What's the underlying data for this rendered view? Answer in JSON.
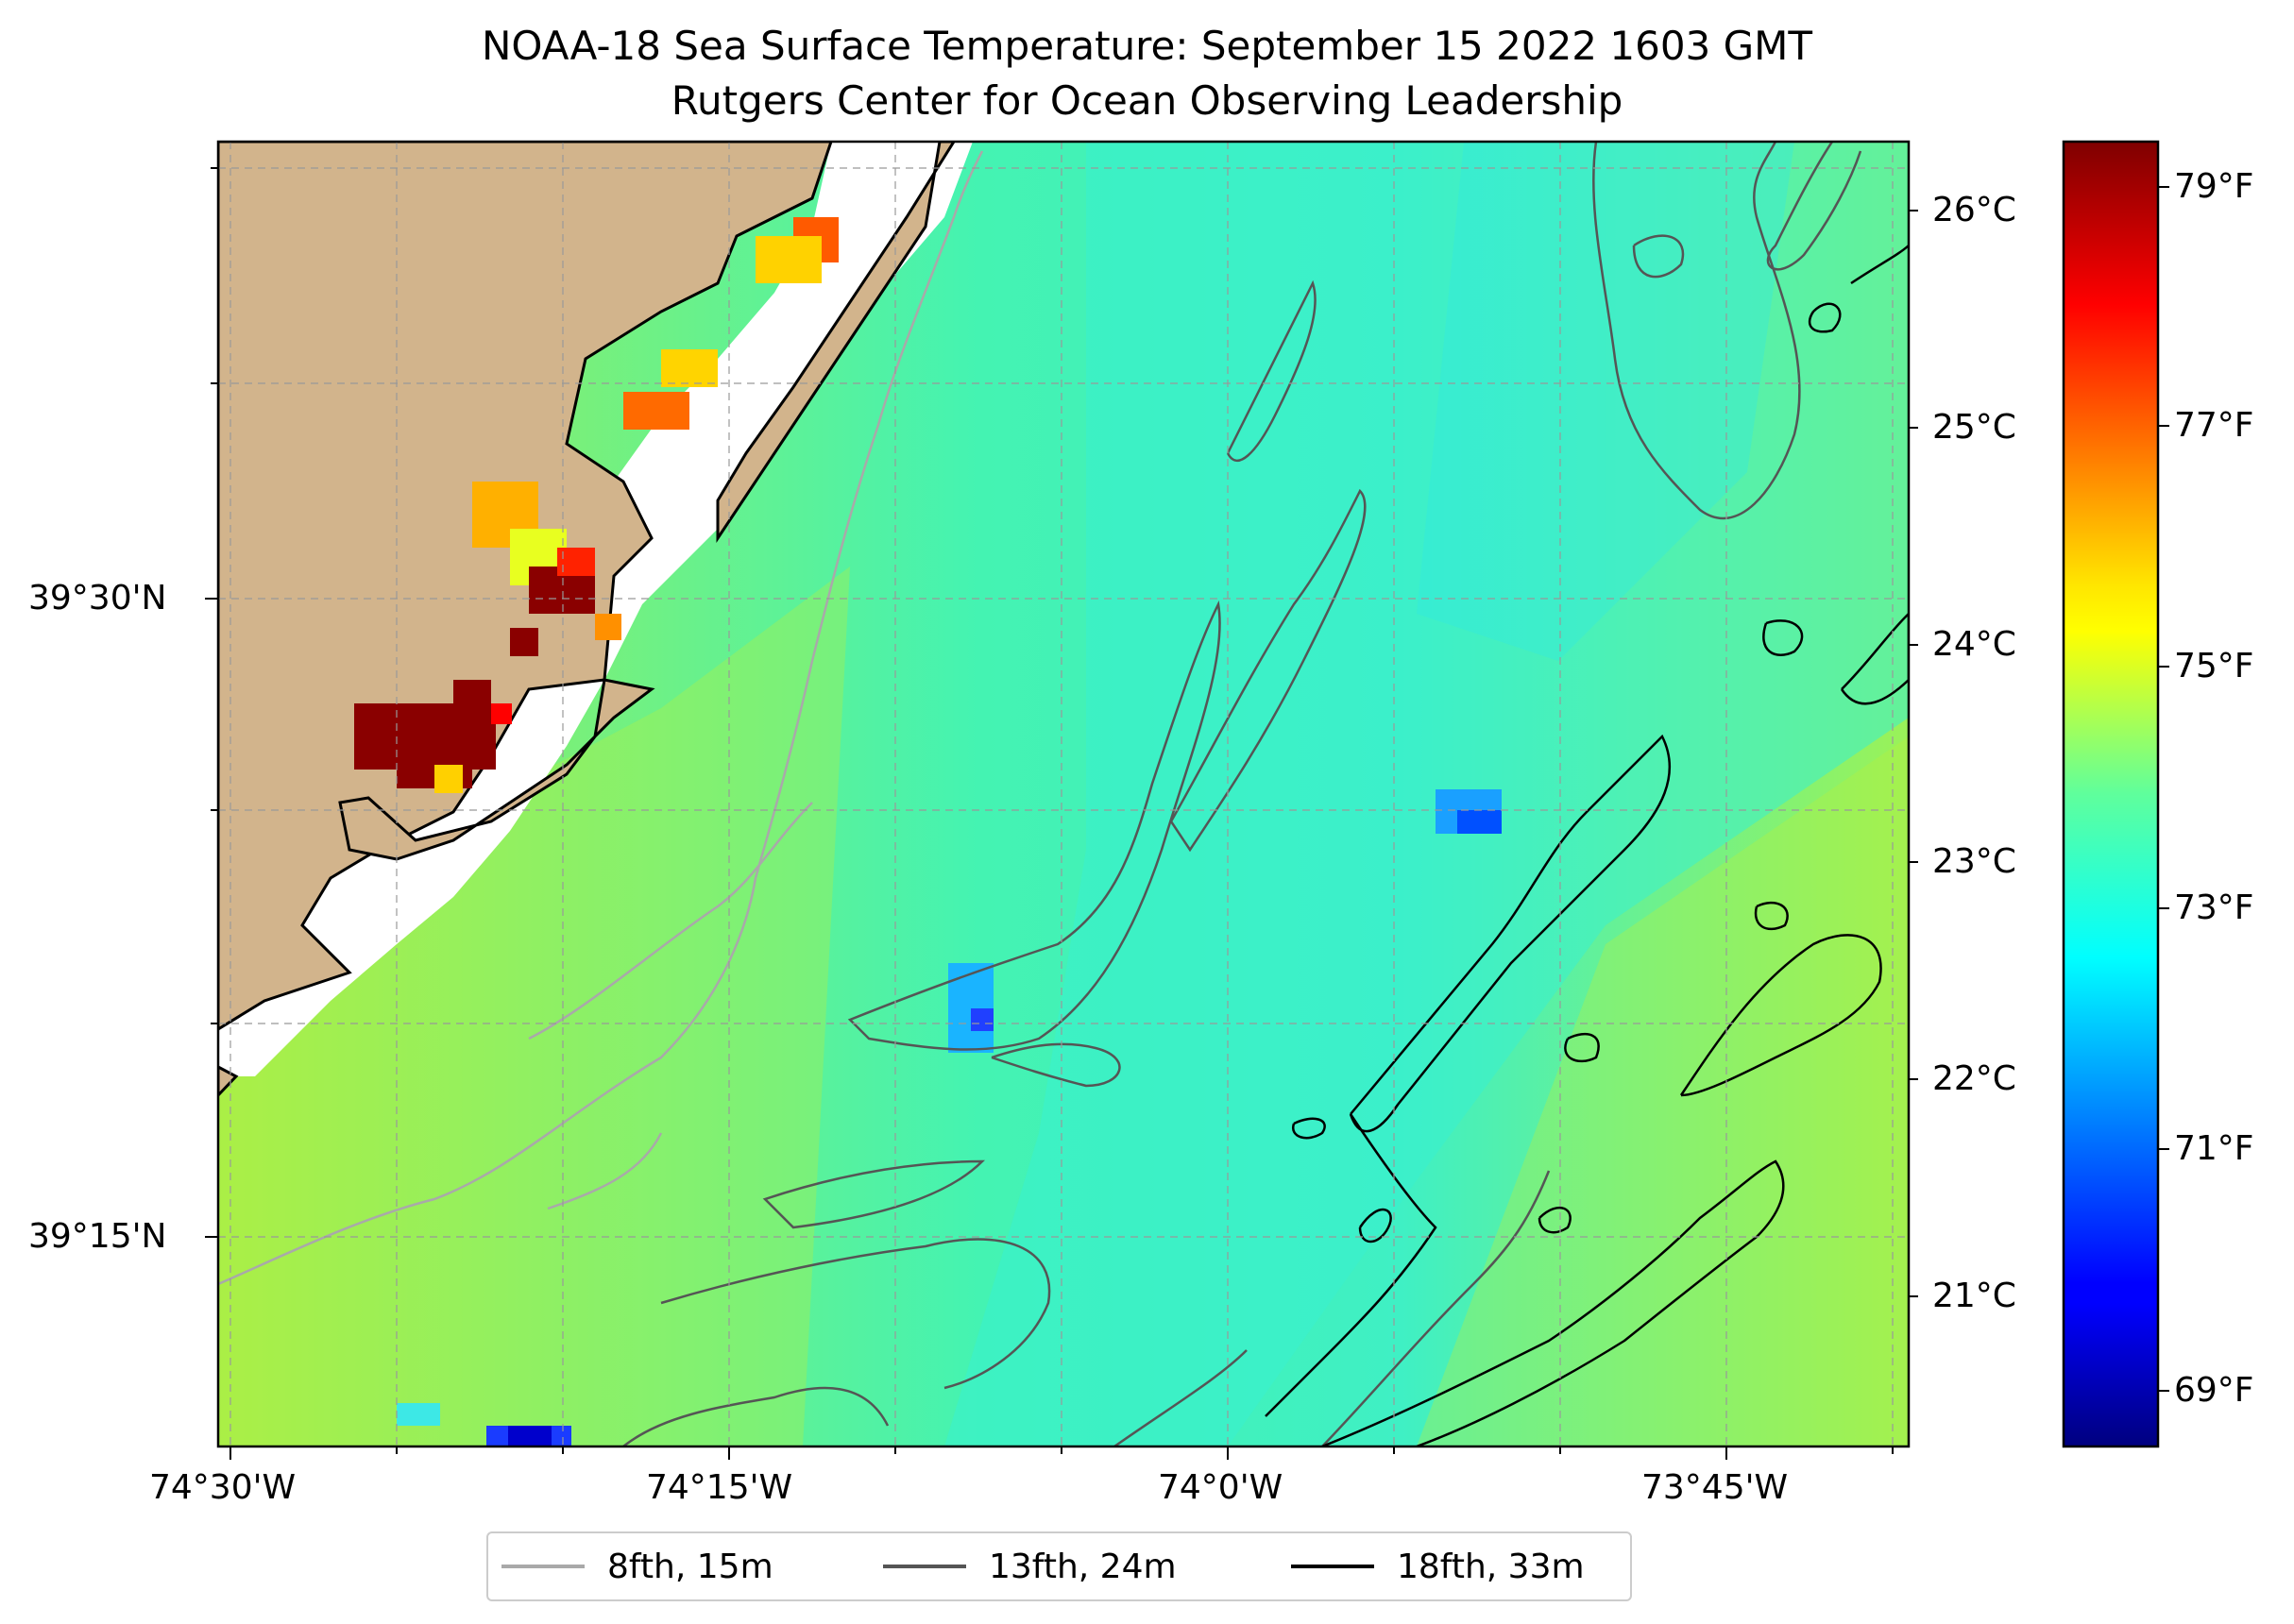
{
  "title": {
    "line1": "NOAA-18 Sea Surface Temperature: September 15 2022 1603 GMT",
    "line2": "Rutgers Center for Ocean Observing Leadership"
  },
  "map": {
    "longitude_ticks": [
      "74°30'W",
      "74°15'W",
      "74°0'W",
      "73°45'W"
    ],
    "latitude_ticks": [
      "39°30'N",
      "39°15'N"
    ],
    "land_color": "#d2b48c",
    "no_data_color": "#ffffff",
    "gridlines": true
  },
  "colorbar": {
    "colormap": "jet",
    "celsius_ticks": [
      "26°C",
      "25°C",
      "24°C",
      "23°C",
      "22°C",
      "21°C"
    ],
    "fahrenheit_ticks": [
      "79°F",
      "77°F",
      "75°F",
      "73°F",
      "71°F",
      "69°F"
    ]
  },
  "legend": {
    "items": [
      {
        "label": "8fth, 15m",
        "color": "#a9a9a9"
      },
      {
        "label": "13fth, 24m",
        "color": "#555555"
      },
      {
        "label": "18fth, 33m",
        "color": "#000000"
      }
    ]
  }
}
